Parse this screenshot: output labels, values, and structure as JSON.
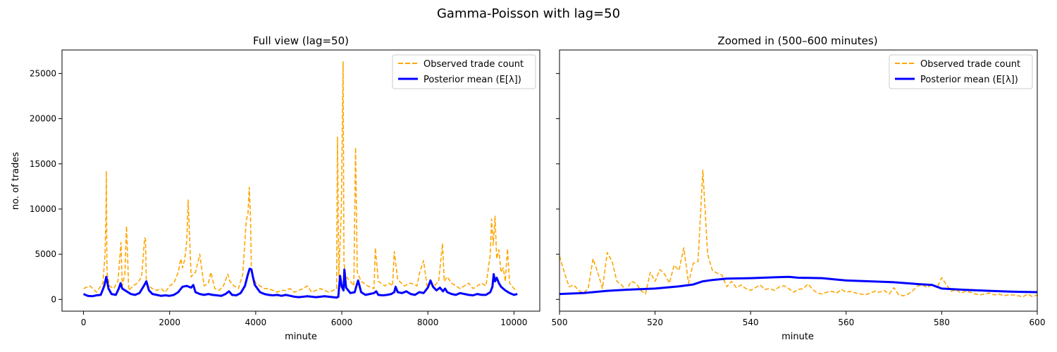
{
  "figure": {
    "suptitle": "Gamma-Poisson with lag=50"
  },
  "colors": {
    "observed": "#ffa500",
    "posterior": "#0000ff",
    "axis": "#000000"
  },
  "chart_data": [
    {
      "type": "line",
      "title": "Full view (lag=50)",
      "xlabel": "minute",
      "ylabel": "no. of trades",
      "xlim": [
        -500,
        10600
      ],
      "ylim": [
        -1300,
        27600
      ],
      "xticks": [
        0,
        2000,
        4000,
        6000,
        8000,
        10000
      ],
      "yticks": [
        0,
        5000,
        10000,
        15000,
        20000,
        25000
      ],
      "legend": {
        "position": "top-right",
        "entries": [
          "Observed trade count",
          "Posterior mean (E[λ])"
        ]
      },
      "series": [
        {
          "name": "Observed trade count",
          "style": "dashed",
          "x": [
            0,
            150,
            300,
            450,
            500,
            520,
            530,
            545,
            600,
            700,
            800,
            870,
            900,
            960,
            1000,
            1050,
            1150,
            1250,
            1350,
            1420,
            1440,
            1460,
            1500,
            1600,
            1700,
            1800,
            1900,
            2000,
            2100,
            2200,
            2260,
            2300,
            2350,
            2400,
            2430,
            2500,
            2600,
            2700,
            2800,
            2900,
            2960,
            3050,
            3150,
            3250,
            3350,
            3400,
            3500,
            3600,
            3700,
            3780,
            3820,
            3850,
            3880,
            3900,
            3940,
            4000,
            4100,
            4200,
            4300,
            4400,
            4500,
            4600,
            4700,
            4800,
            4900,
            5000,
            5100,
            5200,
            5300,
            5400,
            5500,
            5600,
            5700,
            5800,
            5880,
            5900,
            5930,
            5990,
            6030,
            6050,
            6100,
            6200,
            6280,
            6320,
            6360,
            6450,
            6600,
            6750,
            6780,
            6850,
            7000,
            7100,
            7180,
            7220,
            7300,
            7450,
            7600,
            7750,
            7800,
            7900,
            7980,
            8050,
            8150,
            8250,
            8340,
            8380,
            8450,
            8550,
            8650,
            8750,
            8850,
            8950,
            9050,
            9150,
            9250,
            9350,
            9450,
            9480,
            9520,
            9560,
            9600,
            9650,
            9700,
            9750,
            9800,
            9850,
            9900,
            9950,
            10000,
            10080
          ],
          "values": [
            1200,
            1500,
            800,
            1800,
            5000,
            9000,
            14200,
            3000,
            1500,
            1200,
            2000,
            6300,
            1500,
            2800,
            8100,
            1000,
            1500,
            1800,
            2500,
            6800,
            6600,
            1800,
            1500,
            1200,
            1000,
            1200,
            800,
            1500,
            1800,
            3000,
            4500,
            3500,
            4400,
            6500,
            11000,
            2500,
            3000,
            5000,
            1500,
            1800,
            3000,
            1200,
            1000,
            1500,
            2800,
            2000,
            1500,
            1200,
            2800,
            8700,
            9500,
            12400,
            9000,
            3000,
            2500,
            1800,
            1500,
            1200,
            1200,
            1000,
            800,
            1000,
            1000,
            1200,
            800,
            1000,
            1200,
            1500,
            800,
            1000,
            1200,
            1000,
            800,
            1000,
            1200,
            18000,
            2500,
            10000,
            26300,
            4000,
            2500,
            2000,
            1500,
            16800,
            3000,
            2000,
            1500,
            1200,
            5700,
            2000,
            1500,
            1800,
            1500,
            5300,
            2200,
            1500,
            1800,
            1500,
            2800,
            4300,
            1500,
            1800,
            1500,
            2000,
            6200,
            2000,
            2500,
            1800,
            1500,
            1200,
            1500,
            1800,
            1200,
            1500,
            1800,
            1500,
            5000,
            8900,
            6000,
            9200,
            4500,
            5500,
            3000,
            3500,
            2000,
            5600,
            1800,
            1500,
            1200,
            1000
          ]
        },
        {
          "name": "Posterior mean (E[λ])",
          "style": "solid",
          "x": [
            0,
            100,
            200,
            300,
            400,
            480,
            530,
            580,
            650,
            750,
            820,
            860,
            900,
            1000,
            1100,
            1200,
            1300,
            1400,
            1460,
            1520,
            1600,
            1700,
            1800,
            1900,
            2000,
            2100,
            2200,
            2300,
            2400,
            2500,
            2550,
            2600,
            2700,
            2800,
            2900,
            3000,
            3100,
            3200,
            3300,
            3380,
            3450,
            3550,
            3650,
            3750,
            3820,
            3860,
            3900,
            3940,
            3980,
            4100,
            4200,
            4300,
            4400,
            4500,
            4600,
            4700,
            4800,
            4900,
            5000,
            5100,
            5200,
            5300,
            5400,
            5500,
            5600,
            5700,
            5800,
            5880,
            5920,
            5960,
            6000,
            6040,
            6060,
            6100,
            6200,
            6300,
            6340,
            6380,
            6450,
            6550,
            6650,
            6750,
            6800,
            6850,
            6950,
            7050,
            7150,
            7220,
            7250,
            7300,
            7400,
            7500,
            7600,
            7700,
            7800,
            7900,
            8000,
            8060,
            8120,
            8200,
            8280,
            8350,
            8400,
            8450,
            8550,
            8650,
            8750,
            8850,
            8950,
            9050,
            9150,
            9250,
            9350,
            9450,
            9500,
            9530,
            9560,
            9600,
            9650,
            9700,
            9800,
            9900,
            10000,
            10080
          ],
          "values": [
            600,
            400,
            350,
            450,
            500,
            1500,
            2500,
            1200,
            600,
            500,
            1200,
            1800,
            1200,
            900,
            600,
            500,
            700,
            1500,
            2000,
            1000,
            600,
            500,
            400,
            450,
            400,
            500,
            800,
            1400,
            1500,
            1300,
            1600,
            800,
            600,
            500,
            600,
            500,
            450,
            400,
            600,
            900,
            500,
            450,
            700,
            1500,
            2800,
            3400,
            3300,
            2400,
            1600,
            800,
            600,
            500,
            450,
            500,
            400,
            500,
            400,
            300,
            250,
            300,
            350,
            300,
            250,
            300,
            350,
            300,
            250,
            200,
            300,
            2600,
            1400,
            1000,
            3300,
            1300,
            700,
            800,
            1500,
            2100,
            800,
            500,
            600,
            700,
            900,
            500,
            450,
            500,
            600,
            800,
            1400,
            800,
            700,
            900,
            600,
            500,
            800,
            700,
            1300,
            2100,
            1400,
            1000,
            1300,
            900,
            1200,
            800,
            600,
            500,
            700,
            600,
            500,
            450,
            600,
            500,
            500,
            800,
            1400,
            2800,
            2000,
            2400,
            1800,
            1400,
            1000,
            700,
            500,
            600
          ]
        }
      ]
    },
    {
      "type": "line",
      "title": "Zoomed in (500–600 minutes)",
      "xlabel": "minute",
      "ylabel": "",
      "xlim": [
        500,
        600
      ],
      "ylim": [
        -1300,
        27600
      ],
      "xticks": [
        500,
        520,
        540,
        560,
        580,
        600
      ],
      "yticks": [
        0,
        5000,
        10000,
        15000,
        20000,
        25000
      ],
      "legend": {
        "position": "top-right",
        "entries": [
          "Observed trade count",
          "Posterior mean (E[λ])"
        ]
      },
      "series": [
        {
          "name": "Observed trade count",
          "style": "dashed",
          "x": [
            500,
            501,
            502,
            503,
            504,
            505,
            506,
            507,
            508,
            509,
            510,
            511,
            512,
            513,
            514,
            515,
            516,
            517,
            518,
            519,
            520,
            521,
            522,
            523,
            524,
            525,
            526,
            527,
            528,
            529,
            530,
            531,
            532,
            533,
            534,
            535,
            536,
            537,
            538,
            539,
            540,
            541,
            542,
            543,
            544,
            545,
            546,
            547,
            548,
            549,
            550,
            551,
            552,
            553,
            554,
            555,
            556,
            557,
            558,
            559,
            560,
            561,
            562,
            563,
            564,
            565,
            566,
            567,
            568,
            569,
            570,
            571,
            572,
            573,
            574,
            575,
            576,
            577,
            578,
            579,
            580,
            581,
            582,
            583,
            584,
            585,
            586,
            587,
            588,
            589,
            590,
            591,
            592,
            593,
            594,
            595,
            596,
            597,
            598,
            599,
            600
          ],
          "values": [
            4800,
            3000,
            1400,
            1600,
            1000,
            700,
            1200,
            4500,
            3000,
            1200,
            5200,
            4200,
            2000,
            1600,
            1000,
            2000,
            1800,
            1000,
            600,
            3000,
            2000,
            3300,
            2800,
            1800,
            3800,
            3200,
            5700,
            1800,
            4000,
            4200,
            14300,
            5000,
            3200,
            2900,
            2700,
            1400,
            2000,
            1300,
            1600,
            1200,
            1000,
            1300,
            1600,
            1100,
            1200,
            1000,
            1400,
            1500,
            1200,
            800,
            1100,
            1200,
            1700,
            1100,
            700,
            600,
            800,
            900,
            700,
            1100,
            800,
            900,
            700,
            600,
            500,
            700,
            900,
            800,
            1000,
            600,
            1300,
            500,
            400,
            600,
            1000,
            1500,
            1600,
            1300,
            1700,
            1300,
            2400,
            1600,
            900,
            1100,
            700,
            900,
            800,
            600,
            500,
            600,
            700,
            500,
            600,
            400,
            500,
            500,
            400,
            300,
            600,
            300,
            500
          ]
        },
        {
          "name": "Posterior mean (E[λ])",
          "style": "solid",
          "x": [
            500,
            505,
            510,
            515,
            520,
            525,
            528,
            530,
            532,
            535,
            540,
            545,
            548,
            550,
            555,
            558,
            560,
            565,
            570,
            575,
            578,
            580,
            585,
            590,
            595,
            600
          ],
          "values": [
            600,
            700,
            950,
            1100,
            1200,
            1450,
            1650,
            2000,
            2150,
            2300,
            2350,
            2450,
            2500,
            2400,
            2350,
            2200,
            2100,
            2000,
            1900,
            1700,
            1600,
            1200,
            1050,
            950,
            850,
            800
          ]
        }
      ]
    }
  ]
}
